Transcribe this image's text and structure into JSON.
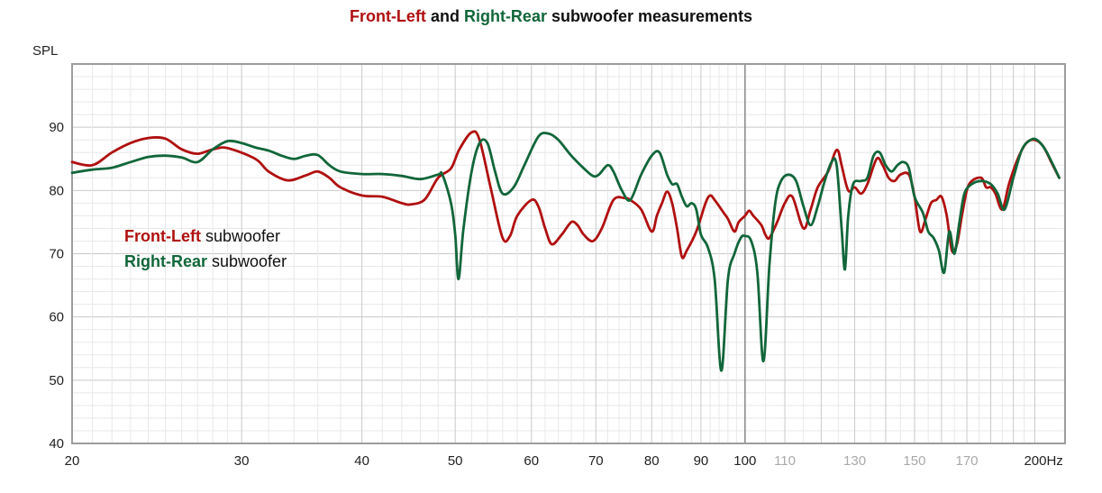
{
  "chart_data": {
    "type": "line",
    "title_parts": [
      {
        "text": "Front-Left",
        "color": "#b01010"
      },
      {
        "text": " and ",
        "color": "#111111"
      },
      {
        "text": "Right-Rear",
        "color": "#11663a"
      },
      {
        "text": " subwoofer measurements",
        "color": "#111111"
      }
    ],
    "ylabel": "SPL",
    "x_unit": "Hz",
    "xscale": "log",
    "xlim": [
      20,
      215
    ],
    "ylim": [
      40,
      100
    ],
    "grid": true,
    "legend_position": "center-left",
    "x_ticks_major": [
      20,
      30,
      40,
      50,
      60,
      70,
      80,
      90,
      100
    ],
    "x_ticks_minor": [
      110,
      130,
      150,
      170
    ],
    "x_ticks_major_labels": [
      "20",
      "30",
      "40",
      "50",
      "60",
      "70",
      "80",
      "90",
      "100"
    ],
    "x_ticks_minor_labels": [
      "110",
      "130",
      "150",
      "170"
    ],
    "x_last_tick_label": "200Hz",
    "y_ticks": [
      40,
      50,
      60,
      70,
      80,
      90
    ],
    "y_tick_labels": [
      "40",
      "50",
      "60",
      "70",
      "80",
      "90"
    ],
    "series": [
      {
        "name": "Front-Left",
        "suffix": " subwoofer",
        "color": "#b01010",
        "points": [
          [
            20,
            84.5
          ],
          [
            21,
            84.0
          ],
          [
            22,
            86.0
          ],
          [
            23,
            87.5
          ],
          [
            24,
            88.3
          ],
          [
            25,
            88.2
          ],
          [
            26,
            86.5
          ],
          [
            27,
            85.8
          ],
          [
            28,
            86.5
          ],
          [
            29,
            86.7
          ],
          [
            31,
            85.0
          ],
          [
            32,
            83.0
          ],
          [
            33.5,
            81.6
          ],
          [
            35,
            82.4
          ],
          [
            36,
            83.0
          ],
          [
            37,
            82.0
          ],
          [
            38,
            80.5
          ],
          [
            40,
            79.2
          ],
          [
            42,
            79.0
          ],
          [
            44,
            78.0
          ],
          [
            45,
            77.8
          ],
          [
            46.5,
            78.6
          ],
          [
            48,
            82.0
          ],
          [
            49.5,
            83.5
          ],
          [
            50.5,
            86.5
          ],
          [
            52,
            89.2
          ],
          [
            53,
            88.0
          ],
          [
            54.5,
            80.0
          ],
          [
            56,
            72.5
          ],
          [
            57,
            72.8
          ],
          [
            58,
            76.0
          ],
          [
            60,
            78.5
          ],
          [
            61,
            77.5
          ],
          [
            62,
            74.0
          ],
          [
            63,
            71.5
          ],
          [
            64.5,
            73.0
          ],
          [
            66,
            75.0
          ],
          [
            67,
            74.5
          ],
          [
            68,
            73.0
          ],
          [
            69.5,
            72.0
          ],
          [
            71,
            74.0
          ],
          [
            73,
            78.5
          ],
          [
            75,
            78.8
          ],
          [
            76,
            78.5
          ],
          [
            78,
            77.0
          ],
          [
            80,
            73.5
          ],
          [
            81,
            76.0
          ],
          [
            82,
            78.0
          ],
          [
            83,
            79.8
          ],
          [
            84,
            78.0
          ],
          [
            85,
            74.0
          ],
          [
            86,
            69.5
          ],
          [
            87,
            70.5
          ],
          [
            89,
            73.5
          ],
          [
            91,
            78.0
          ],
          [
            92,
            79.2
          ],
          [
            93,
            78.5
          ],
          [
            95,
            76.5
          ],
          [
            96,
            75.5
          ],
          [
            97.5,
            73.5
          ],
          [
            98.5,
            75.0
          ],
          [
            100,
            76.0
          ],
          [
            101,
            76.8
          ],
          [
            102,
            76.0
          ],
          [
            104,
            74.5
          ],
          [
            105,
            73.0
          ],
          [
            106,
            72.5
          ],
          [
            108,
            75.0
          ],
          [
            110,
            78.0
          ],
          [
            112,
            79.0
          ],
          [
            115,
            74.0
          ],
          [
            117,
            77.0
          ],
          [
            119,
            80.5
          ],
          [
            122,
            83.0
          ],
          [
            124,
            86.0
          ],
          [
            125,
            86.2
          ],
          [
            126,
            84.0
          ],
          [
            128,
            80.0
          ],
          [
            130,
            80.5
          ],
          [
            132,
            79.5
          ],
          [
            134,
            81.0
          ],
          [
            137,
            85.0
          ],
          [
            139,
            84.0
          ],
          [
            141,
            82.0
          ],
          [
            143,
            81.5
          ],
          [
            145,
            82.5
          ],
          [
            148,
            82.5
          ],
          [
            150,
            79.0
          ],
          [
            152,
            73.5
          ],
          [
            154,
            75.5
          ],
          [
            156,
            78.0
          ],
          [
            158,
            78.5
          ],
          [
            160,
            79.0
          ],
          [
            162,
            76.0
          ],
          [
            164,
            70.5
          ],
          [
            166,
            71.5
          ],
          [
            168,
            76.0
          ],
          [
            170,
            80.0
          ],
          [
            172,
            81.5
          ],
          [
            176,
            82.0
          ],
          [
            178,
            80.5
          ],
          [
            180,
            80.5
          ],
          [
            182,
            79.5
          ],
          [
            185,
            77.0
          ],
          [
            188,
            81.0
          ],
          [
            192,
            85.0
          ],
          [
            196,
            87.5
          ],
          [
            200,
            88.0
          ],
          [
            204,
            87.0
          ],
          [
            208,
            84.5
          ],
          [
            212,
            82.0
          ]
        ]
      },
      {
        "name": "Right-Rear",
        "suffix": " subwoofer",
        "color": "#11663a",
        "points": [
          [
            20,
            82.8
          ],
          [
            21,
            83.3
          ],
          [
            22,
            83.6
          ],
          [
            23,
            84.5
          ],
          [
            24,
            85.3
          ],
          [
            25,
            85.5
          ],
          [
            26,
            85.2
          ],
          [
            27,
            84.5
          ],
          [
            28,
            86.5
          ],
          [
            29,
            87.8
          ],
          [
            30,
            87.5
          ],
          [
            31,
            86.8
          ],
          [
            32,
            86.3
          ],
          [
            33,
            85.5
          ],
          [
            34,
            85.0
          ],
          [
            35,
            85.5
          ],
          [
            36,
            85.6
          ],
          [
            37,
            84.0
          ],
          [
            38,
            83.0
          ],
          [
            40,
            82.6
          ],
          [
            42,
            82.6
          ],
          [
            44,
            82.3
          ],
          [
            46,
            81.8
          ],
          [
            48,
            82.5
          ],
          [
            48.5,
            82.5
          ],
          [
            49.5,
            78.0
          ],
          [
            50,
            73.0
          ],
          [
            50.4,
            66.0
          ],
          [
            51,
            74.0
          ],
          [
            52,
            83.0
          ],
          [
            53,
            87.5
          ],
          [
            54,
            87.5
          ],
          [
            55,
            83.0
          ],
          [
            56,
            79.5
          ],
          [
            57.5,
            80.5
          ],
          [
            59,
            84.0
          ],
          [
            61,
            88.5
          ],
          [
            62.5,
            89.0
          ],
          [
            64,
            88.0
          ],
          [
            66,
            85.5
          ],
          [
            68,
            83.5
          ],
          [
            69.5,
            82.3
          ],
          [
            70.5,
            82.5
          ],
          [
            72,
            84.0
          ],
          [
            73,
            83.0
          ],
          [
            74.5,
            80.0
          ],
          [
            76,
            78.5
          ],
          [
            78,
            82.5
          ],
          [
            80,
            85.5
          ],
          [
            81.5,
            86.0
          ],
          [
            83,
            82.5
          ],
          [
            84,
            81.0
          ],
          [
            85,
            81.0
          ],
          [
            86,
            79.0
          ],
          [
            87,
            77.5
          ],
          [
            88,
            78.0
          ],
          [
            89,
            77.0
          ],
          [
            90,
            73.0
          ],
          [
            91.5,
            71.0
          ],
          [
            93,
            66.0
          ],
          [
            94.5,
            51.5
          ],
          [
            96,
            66.0
          ],
          [
            97.5,
            70.0
          ],
          [
            99,
            72.5
          ],
          [
            100,
            72.8
          ],
          [
            101.5,
            72.0
          ],
          [
            103,
            67.0
          ],
          [
            104.5,
            53.0
          ],
          [
            106,
            68.0
          ],
          [
            107.5,
            78.0
          ],
          [
            109,
            81.5
          ],
          [
            111,
            82.5
          ],
          [
            113,
            81.5
          ],
          [
            115,
            77.5
          ],
          [
            117,
            74.5
          ],
          [
            119,
            77.5
          ],
          [
            121,
            81.5
          ],
          [
            123,
            84.5
          ],
          [
            124.5,
            84.0
          ],
          [
            126,
            74.0
          ],
          [
            127,
            67.5
          ],
          [
            128,
            76.0
          ],
          [
            129.5,
            81.0
          ],
          [
            132,
            81.5
          ],
          [
            134,
            82.0
          ],
          [
            136,
            85.5
          ],
          [
            138,
            86.0
          ],
          [
            140,
            84.0
          ],
          [
            142,
            83.0
          ],
          [
            144,
            84.0
          ],
          [
            146,
            84.5
          ],
          [
            148,
            83.5
          ],
          [
            150,
            79.0
          ],
          [
            153,
            76.5
          ],
          [
            155,
            73.5
          ],
          [
            157,
            72.5
          ],
          [
            159,
            70.5
          ],
          [
            161,
            67.0
          ],
          [
            163,
            73.5
          ],
          [
            165,
            70.0
          ],
          [
            167,
            75.0
          ],
          [
            169,
            79.5
          ],
          [
            172,
            81.0
          ],
          [
            176,
            81.5
          ],
          [
            180,
            81.0
          ],
          [
            183,
            79.5
          ],
          [
            186,
            77.0
          ],
          [
            190,
            82.0
          ],
          [
            194,
            86.5
          ],
          [
            198,
            88.0
          ],
          [
            201,
            88.0
          ],
          [
            205,
            86.5
          ],
          [
            209,
            84.0
          ],
          [
            212,
            82.0
          ]
        ]
      }
    ]
  },
  "colors": {
    "background": "#ffffff",
    "frame": "#9c9c9c",
    "grid_major": "#c9c9c9",
    "grid_minor": "#e8e8e8",
    "marker_100": "#888888"
  }
}
